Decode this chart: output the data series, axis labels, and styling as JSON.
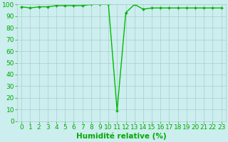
{
  "x": [
    0,
    1,
    2,
    3,
    4,
    5,
    6,
    7,
    8,
    9,
    10,
    11,
    12,
    13,
    14,
    15,
    16,
    17,
    18,
    19,
    20,
    21,
    22,
    23
  ],
  "y": [
    98,
    97,
    98,
    98,
    99,
    99,
    99,
    99,
    100,
    100,
    100,
    9,
    93,
    100,
    96,
    97,
    97,
    97,
    97,
    97,
    97,
    97,
    97,
    97
  ],
  "line_color": "#00bb00",
  "marker": "+",
  "marker_color": "#00aa00",
  "bg_color": "#cceeee",
  "grid_color": "#aacccc",
  "xlabel": "Humidité relative (%)",
  "xlabel_color": "#00aa00",
  "tick_color": "#00aa00",
  "ylim": [
    0,
    100
  ],
  "xlim": [
    -0.5,
    23.5
  ],
  "yticks": [
    0,
    10,
    20,
    30,
    40,
    50,
    60,
    70,
    80,
    90,
    100
  ],
  "xticks": [
    0,
    1,
    2,
    3,
    4,
    5,
    6,
    7,
    8,
    9,
    10,
    11,
    12,
    13,
    14,
    15,
    16,
    17,
    18,
    19,
    20,
    21,
    22,
    23
  ],
  "xlabel_fontsize": 7.5,
  "tick_fontsize": 6.5,
  "linewidth": 1.0,
  "markersize": 3
}
